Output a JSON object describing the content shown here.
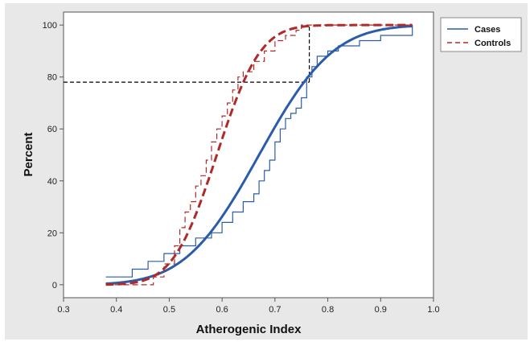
{
  "chart_data": {
    "type": "line",
    "title": "",
    "xlabel": "Atherogenic Index",
    "ylabel": "Percent",
    "xlim": [
      0.3,
      1.0
    ],
    "ylim": [
      -5,
      105
    ],
    "x_ticks": [
      0.3,
      0.4,
      0.5,
      0.6,
      0.7,
      0.8,
      0.9,
      1.0
    ],
    "x_tick_labels": [
      "0.3",
      "0.4",
      "0.5",
      "0.6",
      "0.7",
      "0.8",
      "0.9",
      "1.0"
    ],
    "y_ticks": [
      0,
      20,
      40,
      60,
      80,
      100
    ],
    "y_tick_labels": [
      "0",
      "20",
      "40",
      "60",
      "80",
      "100"
    ],
    "legend_position": "outside-top-right",
    "grid": false,
    "series": [
      {
        "name": "Cases",
        "color": "#2a5caa",
        "style": "solid",
        "fitted_cdf": {
          "mean": 0.67,
          "sd": 0.11
        },
        "ecdf_steps": [
          [
            0.38,
            3
          ],
          [
            0.43,
            6
          ],
          [
            0.46,
            9
          ],
          [
            0.49,
            12
          ],
          [
            0.52,
            15
          ],
          [
            0.55,
            18
          ],
          [
            0.58,
            20
          ],
          [
            0.6,
            24
          ],
          [
            0.62,
            28
          ],
          [
            0.64,
            32
          ],
          [
            0.66,
            35
          ],
          [
            0.67,
            40
          ],
          [
            0.68,
            44
          ],
          [
            0.69,
            48
          ],
          [
            0.7,
            55
          ],
          [
            0.71,
            60
          ],
          [
            0.72,
            64
          ],
          [
            0.73,
            66
          ],
          [
            0.74,
            68
          ],
          [
            0.75,
            72
          ],
          [
            0.76,
            80
          ],
          [
            0.77,
            84
          ],
          [
            0.78,
            88
          ],
          [
            0.8,
            90
          ],
          [
            0.82,
            92
          ],
          [
            0.86,
            94
          ],
          [
            0.9,
            96
          ],
          [
            0.96,
            100
          ]
        ]
      },
      {
        "name": "Controls",
        "color": "#b02a2a",
        "style": "dashed",
        "fitted_cdf": {
          "mean": 0.59,
          "sd": 0.065
        },
        "ecdf_steps": [
          [
            0.38,
            0
          ],
          [
            0.47,
            3
          ],
          [
            0.49,
            8
          ],
          [
            0.51,
            15
          ],
          [
            0.52,
            22
          ],
          [
            0.53,
            28
          ],
          [
            0.54,
            32
          ],
          [
            0.55,
            38
          ],
          [
            0.56,
            42
          ],
          [
            0.57,
            48
          ],
          [
            0.58,
            55
          ],
          [
            0.59,
            60
          ],
          [
            0.6,
            65
          ],
          [
            0.61,
            70
          ],
          [
            0.62,
            75
          ],
          [
            0.63,
            80
          ],
          [
            0.64,
            82
          ],
          [
            0.66,
            86
          ],
          [
            0.68,
            90
          ],
          [
            0.7,
            94
          ],
          [
            0.72,
            96
          ],
          [
            0.74,
            98
          ],
          [
            0.75,
            100
          ],
          [
            0.96,
            100
          ]
        ]
      }
    ],
    "reference_lines": [
      {
        "style": "dashed",
        "color": "#000000",
        "points": [
          [
            0.3,
            78
          ],
          [
            0.765,
            78
          ]
        ]
      },
      {
        "style": "dashed",
        "color": "#000000",
        "points": [
          [
            0.765,
            78
          ],
          [
            0.765,
            100
          ]
        ]
      }
    ]
  }
}
